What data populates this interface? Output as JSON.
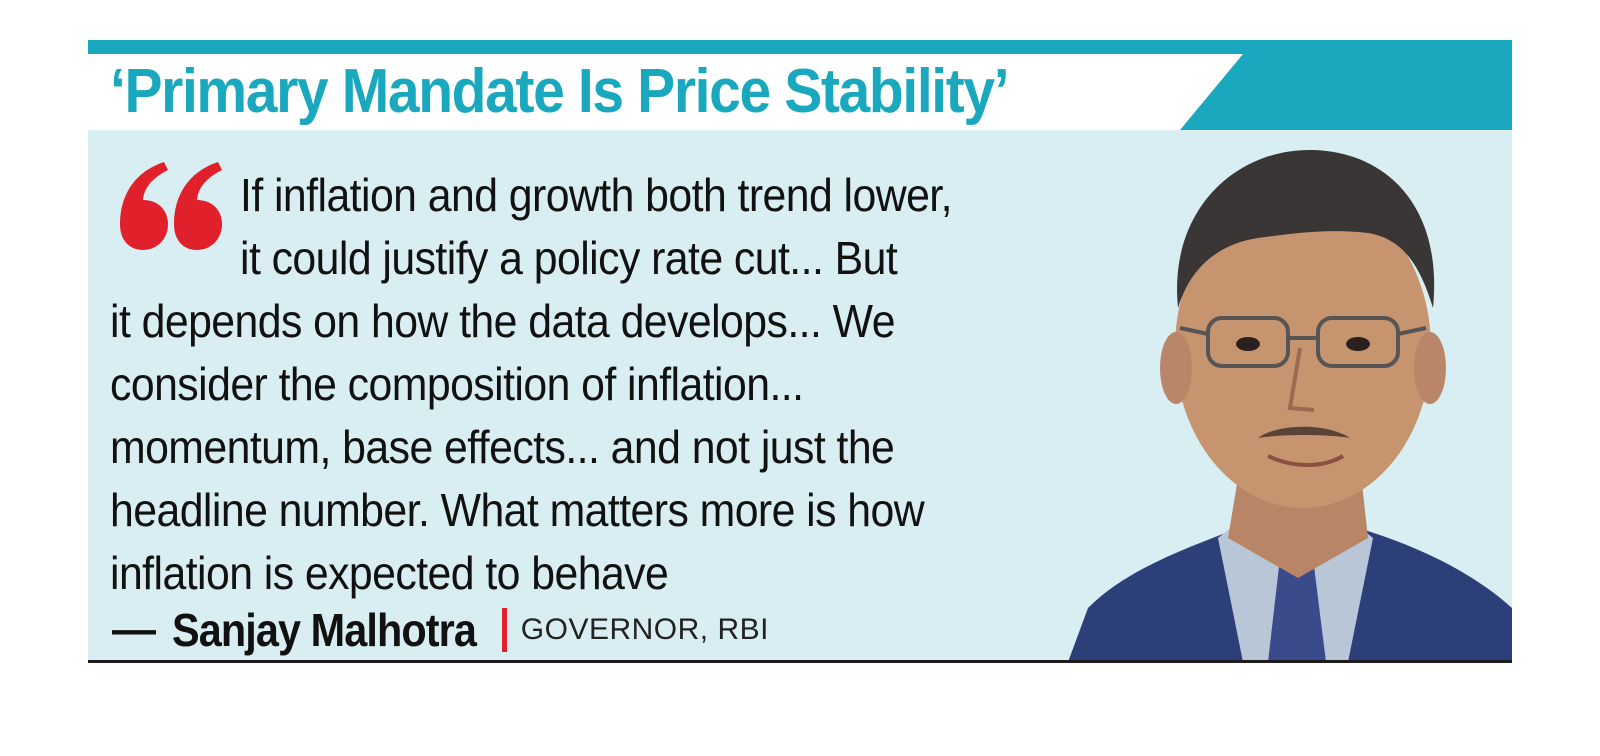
{
  "header": {
    "title": "‘Primary Mandate Is Price Stability’"
  },
  "quote": {
    "lines": [
      "If inflation and growth both trend lower,",
      "it could justify a policy rate cut... But",
      "it depends on how the data develops... We",
      "consider the composition of inflation...",
      "momentum, base effects... and not just the",
      "headline number. What matters more is how",
      "inflation is expected to behave"
    ]
  },
  "attribution": {
    "dash": "—",
    "name": "Sanjay Malhotra",
    "role": "GOVERNOR, RBI"
  },
  "colors": {
    "accent": "#1aa8bf",
    "background": "#d8eef3",
    "quote_mark": "#e0202b"
  },
  "icons": {
    "quote_mark": "open-quote-icon",
    "portrait": "person-portrait"
  }
}
